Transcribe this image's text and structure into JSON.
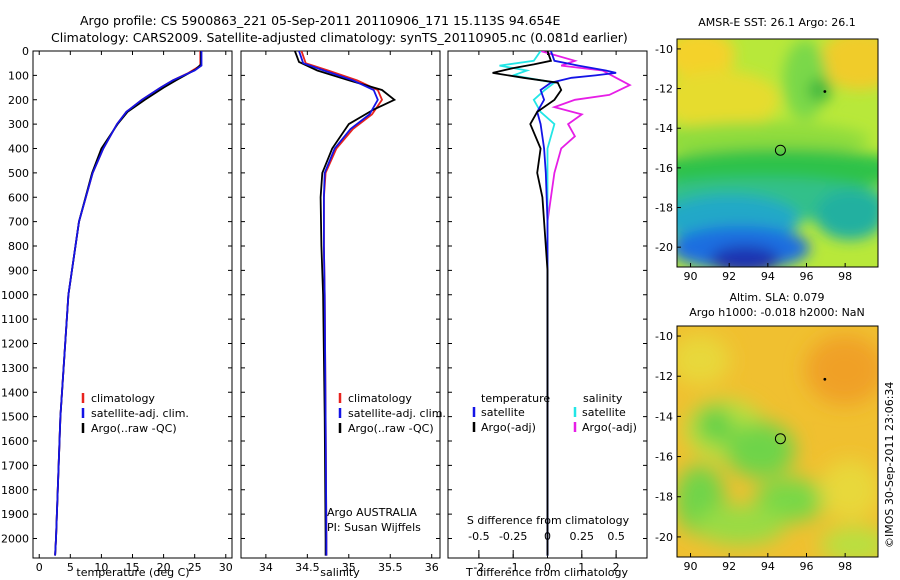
{
  "header": {
    "line1": "Argo profile: CS 5900863_221 05-Sep-2011 20110906_171 15.113S 94.654E",
    "line2": "Climatology: CARS2009. Satellite-adjusted climatology: synTS_20110905.nc (0.081d earlier)"
  },
  "colors": {
    "climatology": "#e8231e",
    "satellite": "#1414e6",
    "argo": "#000000",
    "sal_satellite": "#22e6e6",
    "sal_argo": "#e61ee6"
  },
  "chart_data": [
    {
      "id": "temperature",
      "type": "line",
      "xlabel": "temperature (deg C)",
      "ylabel": "",
      "xlim": [
        -1,
        31
      ],
      "ylim": [
        2080,
        0
      ],
      "xticks": [
        "0",
        "5",
        "10",
        "15",
        "20",
        "25",
        "30"
      ],
      "yticks": [
        "0",
        "100",
        "200",
        "300",
        "400",
        "500",
        "600",
        "700",
        "800",
        "900",
        "1000",
        "1100",
        "1200",
        "1300",
        "1400",
        "1500",
        "1600",
        "1700",
        "1800",
        "1900",
        "2000"
      ],
      "legend": [
        "climatology",
        "satellite-adj. clim.",
        "Argo(..raw -QC)"
      ],
      "legend_position": "bottom-center",
      "series": [
        {
          "name": "climatology",
          "depth": [
            0,
            60,
            90,
            120,
            150,
            200,
            250,
            300,
            400,
            500,
            700,
            1000,
            1500,
            2000,
            2070
          ],
          "values": [
            25.9,
            25.9,
            24.0,
            21.5,
            19.5,
            16.5,
            14.0,
            12.5,
            10.3,
            8.6,
            6.4,
            4.7,
            3.4,
            2.7,
            2.55
          ]
        },
        {
          "name": "satellite-adj. clim.",
          "depth": [
            0,
            60,
            80,
            120,
            150,
            200,
            250,
            300,
            400,
            500,
            700,
            1000,
            1500,
            2000,
            2070
          ],
          "values": [
            26.1,
            26.1,
            25.0,
            21.5,
            19.5,
            16.5,
            14.0,
            12.5,
            10.3,
            8.6,
            6.4,
            4.7,
            3.4,
            2.7,
            2.55
          ]
        },
        {
          "name": "Argo(..raw -QC)",
          "depth": [
            0,
            55,
            75,
            120,
            150,
            200,
            250,
            300,
            400,
            500,
            700,
            1000,
            1500,
            2000,
            2070
          ],
          "values": [
            26.0,
            26.0,
            25.2,
            22.0,
            20.0,
            17.0,
            14.2,
            12.6,
            10.0,
            8.5,
            6.4,
            4.7,
            3.4,
            2.7,
            2.55
          ]
        }
      ]
    },
    {
      "id": "salinity",
      "type": "line",
      "xlabel": "salinity",
      "ylabel": "",
      "xlim": [
        33.7,
        36.1
      ],
      "ylim": [
        2080,
        0
      ],
      "xticks": [
        "34",
        "34.5",
        "35",
        "35.5",
        "36"
      ],
      "legend": [
        "climatology",
        "satellite-adj. clim.",
        "Argo(..raw -QC)"
      ],
      "legend_position": "bottom-right",
      "annotation": [
        "Argo AUSTRALIA",
        "PI: Susan Wijffels"
      ],
      "series": [
        {
          "name": "climatology",
          "depth": [
            0,
            50,
            80,
            120,
            160,
            200,
            260,
            320,
            400,
            500,
            600,
            800,
            1000,
            1500,
            2000,
            2070
          ],
          "values": [
            34.43,
            34.48,
            34.75,
            35.1,
            35.35,
            35.4,
            35.28,
            35.05,
            34.85,
            34.72,
            34.7,
            34.7,
            34.71,
            34.72,
            34.73,
            34.73
          ]
        },
        {
          "name": "satellite-adj. clim.",
          "depth": [
            0,
            50,
            80,
            120,
            160,
            200,
            260,
            320,
            400,
            500,
            600,
            800,
            1000,
            1500,
            2000,
            2070
          ],
          "values": [
            34.4,
            34.45,
            34.7,
            35.05,
            35.3,
            35.35,
            35.25,
            35.02,
            34.83,
            34.71,
            34.7,
            34.7,
            34.71,
            34.72,
            34.73,
            34.73
          ]
        },
        {
          "name": "Argo(..raw -QC)",
          "depth": [
            0,
            45,
            80,
            120,
            160,
            200,
            240,
            300,
            400,
            500,
            600,
            800,
            1000,
            1500,
            2000,
            2070
          ],
          "values": [
            34.35,
            34.4,
            34.62,
            35.0,
            35.4,
            35.55,
            35.3,
            35.0,
            34.8,
            34.68,
            34.66,
            34.67,
            34.69,
            34.71,
            34.72,
            34.72
          ]
        }
      ]
    },
    {
      "id": "difference",
      "type": "line",
      "xlabel": "T difference from climatology",
      "xlabel_top": "S difference from climatology",
      "xlim": [
        -2.9,
        2.9
      ],
      "ylim": [
        2080,
        0
      ],
      "xticks": [
        "-2",
        "-1",
        "0",
        "1",
        "2"
      ],
      "xticks_s": [
        "-0.5",
        "-0.25",
        "0",
        "0.25",
        "0.5"
      ],
      "legend": [
        "temperature",
        "satellite",
        "Argo(-adj)",
        "salinity",
        "satellite",
        "Argo(-adj)"
      ],
      "legend_position": "bottom",
      "series": [
        {
          "name": "temperature satellite",
          "depth": [
            0,
            40,
            60,
            80,
            90,
            100,
            110,
            130,
            160,
            200,
            250,
            300,
            400,
            500,
            700,
            1000,
            1500,
            2000,
            2070
          ],
          "values": [
            0.1,
            0.2,
            0.9,
            1.7,
            2.0,
            1.4,
            0.7,
            0.1,
            -0.2,
            -0.1,
            -0.3,
            -0.2,
            -0.1,
            -0.05,
            0,
            0,
            0,
            0,
            0
          ]
        },
        {
          "name": "temperature Argo(-adj)",
          "depth": [
            0,
            40,
            55,
            70,
            90,
            110,
            130,
            160,
            200,
            250,
            300,
            400,
            500,
            600,
            700,
            800,
            900,
            1000,
            1500,
            2000,
            2070
          ],
          "values": [
            0,
            0.1,
            -0.4,
            -1.0,
            -1.6,
            -0.7,
            0.3,
            0.4,
            0.2,
            -0.3,
            -0.5,
            -0.2,
            -0.3,
            -0.15,
            -0.1,
            -0.05,
            0,
            0,
            0,
            0,
            0
          ]
        },
        {
          "name": "salinity satellite",
          "depth": [
            0,
            40,
            60,
            80,
            100,
            130,
            160,
            200,
            250,
            300,
            400,
            500,
            700,
            1000,
            1500,
            2000,
            2070
          ],
          "values": [
            -0.05,
            -0.1,
            -0.35,
            -0.15,
            -0.25,
            0.05,
            -0.02,
            -0.1,
            -0.05,
            0.05,
            0,
            0,
            0,
            0,
            0,
            0,
            0
          ]
        },
        {
          "name": "salinity Argo(-adj)",
          "depth": [
            0,
            40,
            60,
            80,
            110,
            140,
            180,
            200,
            230,
            260,
            300,
            350,
            400,
            500,
            700,
            1000,
            1500,
            2000,
            2070
          ],
          "values": [
            -0.05,
            0.2,
            0.1,
            0.4,
            0.5,
            0.6,
            0.45,
            0.2,
            0.05,
            0.25,
            0.15,
            0.2,
            0.1,
            0.05,
            0,
            0,
            0,
            0,
            0
          ]
        }
      ]
    },
    {
      "id": "sst_map",
      "type": "heatmap",
      "title": "AMSR-E SST: 26.1  Argo: 26.1",
      "xticks": [
        "90",
        "92",
        "94",
        "96",
        "98"
      ],
      "yticks": [
        "-10",
        "-12",
        "-14",
        "-16",
        "-18",
        "-20"
      ],
      "xlim": [
        89.3,
        99.7
      ],
      "ylim": [
        -21.0,
        -9.5
      ],
      "markers": [
        {
          "type": "circle",
          "lon": 94.65,
          "lat": -15.11
        },
        {
          "type": "dot",
          "lon": 96.95,
          "lat": -12.15
        }
      ]
    },
    {
      "id": "sla_map",
      "type": "heatmap",
      "title": "Altim. SLA: 0.079",
      "subtitle": "Argo h1000: -0.018 h2000: NaN",
      "xticks": [
        "90",
        "92",
        "94",
        "96",
        "98"
      ],
      "yticks": [
        "-10",
        "-12",
        "-14",
        "-16",
        "-18",
        "-20"
      ],
      "xlim": [
        89.3,
        99.7
      ],
      "ylim": [
        -21.0,
        -9.5
      ],
      "markers": [
        {
          "type": "circle",
          "lon": 94.65,
          "lat": -15.11
        },
        {
          "type": "dot",
          "lon": 96.95,
          "lat": -12.15
        }
      ]
    }
  ],
  "footer": {
    "stamp": "©IMOS 30-Sep-2011 23:06:34"
  }
}
